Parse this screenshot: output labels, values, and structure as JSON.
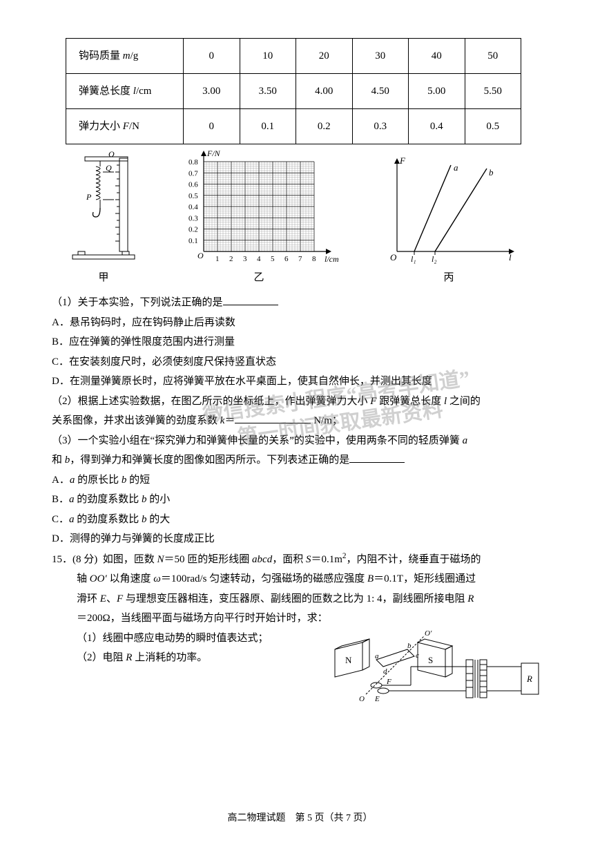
{
  "table": {
    "headers": [
      "钩码质量 m/g",
      "0",
      "10",
      "20",
      "30",
      "40",
      "50"
    ],
    "rows": [
      [
        "弹簧总长度 l/cm",
        "3.00",
        "3.50",
        "4.00",
        "4.50",
        "5.00",
        "5.50"
      ],
      [
        "弹力大小 F/N",
        "0",
        "0.1",
        "0.2",
        "0.3",
        "0.4",
        "0.5"
      ]
    ],
    "border_color": "#000000",
    "col_count": 7
  },
  "figures": {
    "jia": {
      "label": "甲",
      "parts": {
        "Q": "Q",
        "P": "P",
        "O": "O"
      }
    },
    "yi": {
      "label": "乙",
      "y_axis_label": "F/N",
      "x_axis_label": "l/cm",
      "y_ticks": [
        "0.1",
        "0.2",
        "0.3",
        "0.4",
        "0.5",
        "0.6",
        "0.7",
        "0.8"
      ],
      "x_ticks": [
        "1",
        "2",
        "3",
        "4",
        "5",
        "6",
        "7",
        "8"
      ],
      "origin": "O",
      "grid_color": "#000000",
      "bg": "#ffffff",
      "xlim": [
        0,
        8
      ],
      "ylim": [
        0,
        0.8
      ]
    },
    "bing": {
      "label": "丙",
      "y_axis_label": "F",
      "x_axis_label": "l",
      "origin": "O",
      "line_a": "a",
      "line_b": "b",
      "l1": "l₁",
      "l2": "l₂",
      "line_color": "#000000"
    }
  },
  "q1": {
    "stem": "（1）关于本实验，下列说法正确的是",
    "A": "A．悬吊钩码时，应在钩码静止后再读数",
    "B": "B．应在弹簧的弹性限度范围内进行测量",
    "C": "C．在安装刻度尺时，必须使刻度尺保持竖直状态",
    "D": "D．在测量弹簧原长时，应将弹簧平放在水平桌面上，使其自然伸长，并测出其长度"
  },
  "q2": {
    "line1_a": "（2）根据上述实验数据，在图乙所示的坐标纸上，作出弹簧弹力大小 F 跟弹簧总长度 l 之间的",
    "line2_a": "关系图像，并求出该弹簧的劲度系数 k＝",
    "line2_b": " N/m；"
  },
  "q3": {
    "line1": "（3）一个实验小组在“探究弹力和弹簧伸长量的关系”的实验中，使用两条不同的轻质弹簧 a",
    "line2": "和 b，得到弹力和弹簧长度的图像如图丙所示。下列表述正确的是",
    "A": "A．a 的原长比 b 的短",
    "B": "B．a 的劲度系数比 b 的小",
    "C": "C．a 的劲度系数比 b 的大",
    "D": "D．测得的弹力与弹簧的长度成正比"
  },
  "q15": {
    "num": "15．(8 分)  ",
    "l1": "如图，匝数 N＝50 匝的矩形线圈 abcd，面积 S＝0.1m²，内阻不计，绕垂直于磁场的",
    "l2": "轴 OO′ 以角速度 ω＝100rad/s 匀速转动，匀强磁场的磁感应强度 B＝0.1T，矩形线圈通过",
    "l3": "滑环 E、F 与理想变压器相连，变压器原、副线圈的匝数之比为 1: 4，副线圈所接电阻 R",
    "l4": "＝200Ω，当线圈平面与磁场方向平行时开始计时，求：",
    "p1": "（1）线圈中感应电动势的瞬时值表达式；",
    "p2": "（2）电阻 R 上消耗的功率。",
    "circuit": {
      "N": "N",
      "S": "S",
      "R": "R",
      "a": "a",
      "b": "b",
      "c": "c",
      "d": "d",
      "E": "E",
      "F": "F",
      "O": "O",
      "O2": "O′"
    }
  },
  "watermark": {
    "l1": "微信搜索小程序“高考早知道”",
    "l2": "第一时间获取最新资料"
  },
  "footer": {
    "text_a": "高二物理试题　第 ",
    "page": "5",
    "text_b": " 页（共 ",
    "total": "7",
    "text_c": " 页）"
  }
}
